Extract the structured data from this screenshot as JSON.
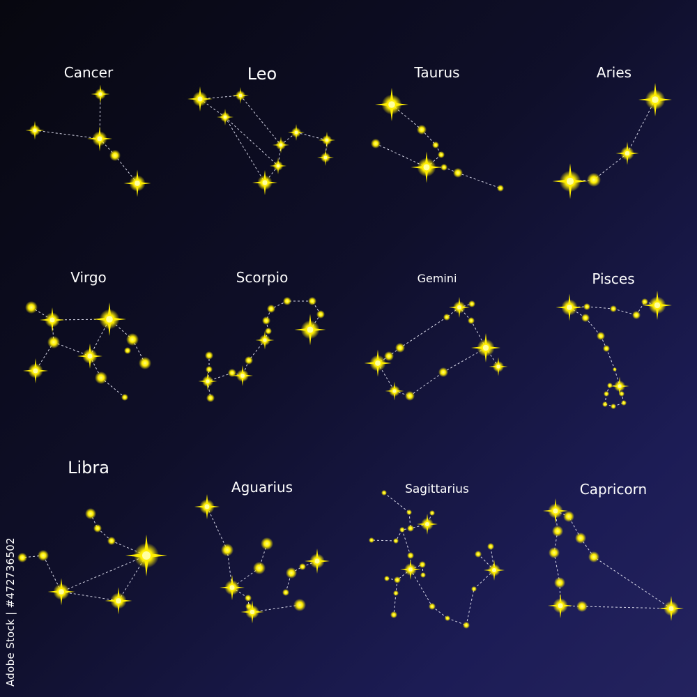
{
  "constellations": [
    {
      "name": "Cancer"
    },
    {
      "name": "Leo"
    },
    {
      "name": "Taurus"
    },
    {
      "name": "Aries"
    },
    {
      "name": "Virgo"
    },
    {
      "name": "Scorpio"
    },
    {
      "name": "Gemini"
    },
    {
      "name": "Pisces"
    },
    {
      "name": "Libra"
    },
    {
      "name": "Aguarius"
    },
    {
      "name": "Sagittarius"
    },
    {
      "name": "Capricorn"
    }
  ],
  "watermark": "Adobe Stock",
  "side_text": "Adobe Stock | #472736502",
  "colors": {
    "star": "#ffee00",
    "line": "#d8d8e8",
    "text": "#ffffff"
  }
}
